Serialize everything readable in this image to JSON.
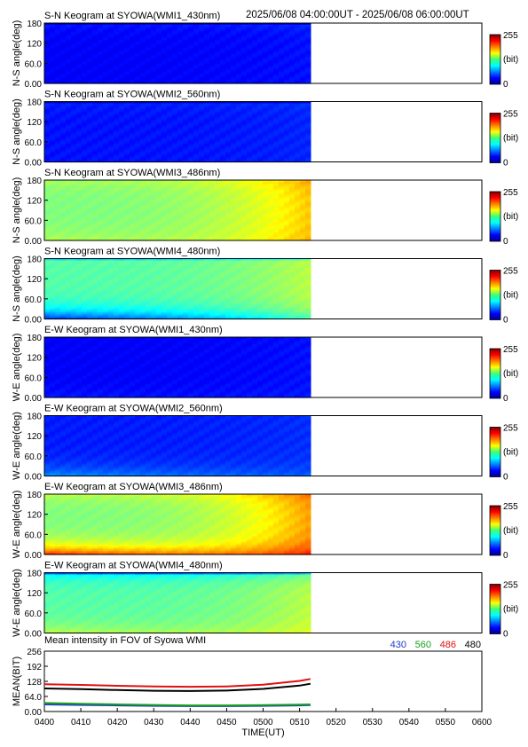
{
  "header": {
    "time_range": "2025/06/08 04:00:00UT - 2025/06/08 06:00:00UT"
  },
  "colors": {
    "series_430": "#1e3cc8",
    "series_560": "#1aa01a",
    "series_486": "#e01010",
    "series_480": "#000000"
  },
  "chart_data": [
    {
      "type": "heatmap",
      "title": "S-N Keogram at SYOWA(WMI1_430nm)",
      "ylabel": "N-S angle(deg)",
      "yticks": [
        "0.00",
        "60.0",
        "120",
        "180"
      ],
      "ylim": [
        0,
        180
      ],
      "xlim_minutes": [
        0,
        120
      ],
      "data_end_minutes": 73,
      "colorbar": {
        "min": "0",
        "max": "255",
        "unit": "(bit)"
      },
      "intensity": {
        "base": 0.12,
        "end_boost": 0.02,
        "low_edge": 0.0,
        "high_edge": 0.03,
        "top_dark": 0.03
      },
      "colormap": "jet"
    },
    {
      "type": "heatmap",
      "title": "S-N Keogram at SYOWA(WMI2_560nm)",
      "ylabel": "N-S angle(deg)",
      "yticks": [
        "0.00",
        "60.0",
        "120",
        "180"
      ],
      "ylim": [
        0,
        180
      ],
      "xlim_minutes": [
        0,
        120
      ],
      "data_end_minutes": 73,
      "colorbar": {
        "min": "0",
        "max": "255",
        "unit": "(bit)"
      },
      "intensity": {
        "base": 0.14,
        "end_boost": 0.02,
        "low_edge": 0.0,
        "high_edge": 0.02,
        "top_dark": 0.04
      },
      "colormap": "jet"
    },
    {
      "type": "heatmap",
      "title": "S-N Keogram at SYOWA(WMI3_486nm)",
      "ylabel": "N-S angle(deg)",
      "yticks": [
        "0.00",
        "60.0",
        "120",
        "180"
      ],
      "ylim": [
        0,
        180
      ],
      "xlim_minutes": [
        0,
        120
      ],
      "data_end_minutes": 73,
      "colorbar": {
        "min": "0",
        "max": "255",
        "unit": "(bit)"
      },
      "intensity": {
        "base": 0.5,
        "end_boost": 0.18,
        "low_edge": 0.05,
        "high_edge": 0.05,
        "top_dark": 0.01
      },
      "colormap": "jet"
    },
    {
      "type": "heatmap",
      "title": "S-N Keogram at SYOWA(WMI4_480nm)",
      "ylabel": "N-S angle(deg)",
      "yticks": [
        "0.00",
        "60.0",
        "120",
        "180"
      ],
      "ylim": [
        0,
        180
      ],
      "xlim_minutes": [
        0,
        120
      ],
      "data_end_minutes": 73,
      "colorbar": {
        "min": "0",
        "max": "255",
        "unit": "(bit)"
      },
      "intensity": {
        "base": 0.46,
        "end_boost": 0.1,
        "low_edge": -0.3,
        "high_edge": 0.0,
        "top_dark": 0.05
      },
      "colormap": "jet"
    },
    {
      "type": "heatmap",
      "title": "E-W Keogram at SYOWA(WMI1_430nm)",
      "ylabel": "W-E angle(deg)",
      "yticks": [
        "0.00",
        "60.0",
        "120",
        "180"
      ],
      "ylim": [
        0,
        180
      ],
      "xlim_minutes": [
        0,
        120
      ],
      "data_end_minutes": 73,
      "colorbar": {
        "min": "0",
        "max": "255",
        "unit": "(bit)"
      },
      "intensity": {
        "base": 0.12,
        "end_boost": 0.02,
        "low_edge": 0.03,
        "high_edge": 0.0,
        "top_dark": 0.0
      },
      "colormap": "jet"
    },
    {
      "type": "heatmap",
      "title": "E-W Keogram at SYOWA(WMI2_560nm)",
      "ylabel": "W-E angle(deg)",
      "yticks": [
        "0.00",
        "60.0",
        "120",
        "180"
      ],
      "ylim": [
        0,
        180
      ],
      "xlim_minutes": [
        0,
        120
      ],
      "data_end_minutes": 73,
      "colorbar": {
        "min": "0",
        "max": "255",
        "unit": "(bit)"
      },
      "intensity": {
        "base": 0.15,
        "end_boost": 0.02,
        "low_edge": 0.12,
        "high_edge": 0.0,
        "top_dark": 0.0
      },
      "colormap": "jet"
    },
    {
      "type": "heatmap",
      "title": "E-W Keogram at SYOWA(WMI3_486nm)",
      "ylabel": "W-E angle(deg)",
      "yticks": [
        "0.00",
        "60.0",
        "120",
        "180"
      ],
      "ylim": [
        0,
        180
      ],
      "xlim_minutes": [
        0,
        120
      ],
      "data_end_minutes": 73,
      "colorbar": {
        "min": "0",
        "max": "255",
        "unit": "(bit)"
      },
      "intensity": {
        "base": 0.5,
        "end_boost": 0.22,
        "low_edge": 0.35,
        "high_edge": 0.06,
        "top_dark": 0.0
      },
      "colormap": "jet"
    },
    {
      "type": "heatmap",
      "title": "E-W Keogram at SYOWA(WMI4_480nm)",
      "ylabel": "W-E angle(deg)",
      "yticks": [
        "0.00",
        "60.0",
        "120",
        "180"
      ],
      "ylim": [
        0,
        180
      ],
      "xlim_minutes": [
        0,
        120
      ],
      "data_end_minutes": 73,
      "colorbar": {
        "min": "0",
        "max": "255",
        "unit": "(bit)"
      },
      "intensity": {
        "base": 0.46,
        "end_boost": 0.1,
        "low_edge": 0.1,
        "high_edge": -0.12,
        "top_dark": 0.06
      },
      "colormap": "jet"
    },
    {
      "type": "line",
      "title": "Mean intensity in FOV of Syowa WMI",
      "ylabel": "MEAN(BIT)",
      "xlabel": "TIME(UT)",
      "yticks": [
        "0.00",
        "64.0",
        "128",
        "192",
        "256"
      ],
      "ylim": [
        0,
        256
      ],
      "xlim_minutes": [
        0,
        120
      ],
      "xticks": [
        "0400",
        "0410",
        "0420",
        "0430",
        "0440",
        "0450",
        "0500",
        "0510",
        "0520",
        "0530",
        "0540",
        "0550",
        "0600"
      ],
      "legend": [
        "430",
        "560",
        "486",
        "480"
      ],
      "series": [
        {
          "name": "430",
          "x": [
            0,
            10,
            20,
            30,
            40,
            50,
            60,
            70,
            73
          ],
          "values": [
            30,
            28,
            26,
            24,
            23,
            23,
            24,
            26,
            27
          ]
        },
        {
          "name": "560",
          "x": [
            0,
            10,
            20,
            30,
            40,
            50,
            60,
            70,
            73
          ],
          "values": [
            36,
            33,
            30,
            28,
            26,
            26,
            27,
            29,
            30
          ]
        },
        {
          "name": "486",
          "x": [
            0,
            10,
            20,
            30,
            40,
            50,
            60,
            70,
            73
          ],
          "values": [
            116,
            113,
            109,
            106,
            105,
            106,
            114,
            130,
            138
          ]
        },
        {
          "name": "480",
          "x": [
            0,
            10,
            20,
            30,
            40,
            50,
            60,
            70,
            73
          ],
          "values": [
            98,
            95,
            91,
            88,
            87,
            89,
            96,
            110,
            118
          ]
        }
      ]
    }
  ]
}
